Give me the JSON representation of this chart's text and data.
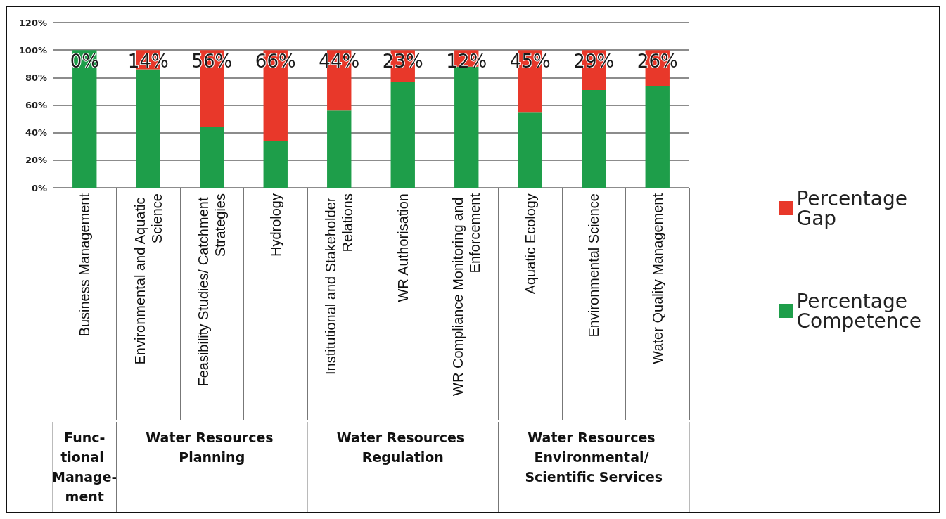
{
  "chart_data": {
    "type": "bar",
    "stacked": true,
    "categories": [
      "Business Management",
      "Environmental and Aquatic Science",
      "Feasibility Studies/ Catchment Strategies",
      "Hydrology",
      "Institutional and Stakeholder Relations",
      "WR Authorisation",
      "WR Compliance Monitoring and Enforcement",
      "Aquatic Ecology",
      "Environmental Science",
      "Water Quality Management"
    ],
    "series": [
      {
        "name": "Percentage Competence",
        "color": "#1e9e4a",
        "values": [
          100,
          86,
          44,
          34,
          56,
          77,
          88,
          55,
          71,
          74
        ]
      },
      {
        "name": "Percentage Gap",
        "color": "#e8382a",
        "values": [
          0,
          14,
          56,
          66,
          44,
          23,
          12,
          45,
          29,
          26
        ],
        "value_labels": [
          "0%",
          "14%",
          "56%",
          "66%",
          "44%",
          "23%",
          "12%",
          "45%",
          "29%",
          "26%"
        ]
      }
    ],
    "ylim": [
      0,
      120
    ],
    "yticks": [
      {
        "value": 0,
        "label": "0%"
      },
      {
        "value": 20,
        "label": "20%"
      },
      {
        "value": 40,
        "label": "40%"
      },
      {
        "value": 60,
        "label": "60%"
      },
      {
        "value": 80,
        "label": "80%"
      },
      {
        "value": 100,
        "label": "100%"
      },
      {
        "value": 120,
        "label": "120%"
      }
    ],
    "grid": "y",
    "legend": "right",
    "annotations": [
      "Func-tional Manage-ment",
      "Water Resources Planning",
      "Water Resources Regulation",
      "Water Resources Environmental/ Scientific Services"
    ]
  }
}
